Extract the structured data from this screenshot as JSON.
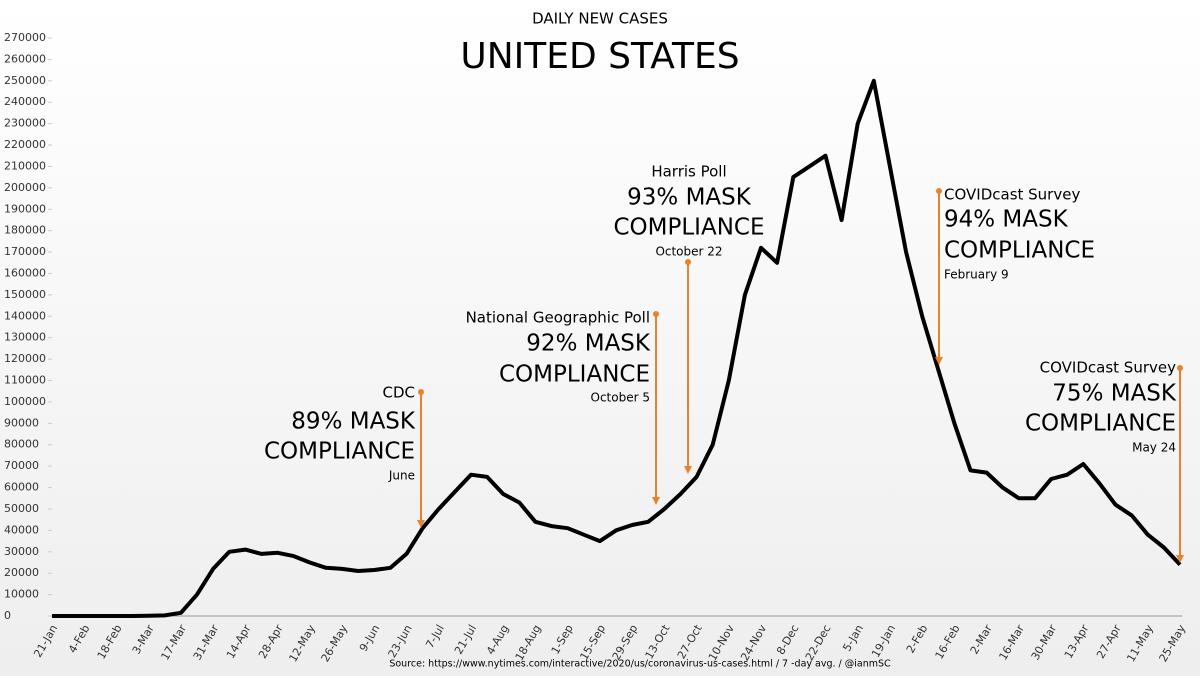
{
  "chart_data": {
    "type": "line",
    "title": "DAILY NEW CASES",
    "subtitle": "UNITED STATES",
    "source": "Source: https://www.nytimes.com/interactive/2020/us/coronavirus-us-cases.html / 7 -day avg. / @ianmSC",
    "categories": [
      "21-Jan",
      null,
      "4-Feb",
      null,
      "18-Feb",
      null,
      "3-Mar",
      null,
      "17-Mar",
      null,
      "31-Mar",
      null,
      "14-Apr",
      null,
      "28-Apr",
      null,
      "12-May",
      null,
      "26-May",
      null,
      "9-Jun",
      null,
      "23-Jun",
      null,
      "7-Jul",
      null,
      "21-Jul",
      null,
      "4-Aug",
      null,
      "18-Aug",
      null,
      "1-Sep",
      null,
      "15-Sep",
      null,
      "29-Sep",
      null,
      "13-Oct",
      null,
      "27-Oct",
      null,
      "10-Nov",
      null,
      "24-Nov",
      null,
      "8-Dec",
      null,
      "22-Dec",
      null,
      "5-Jan",
      null,
      "19-Jan",
      null,
      "2-Feb",
      null,
      "16-Feb",
      null,
      "2-Mar",
      null,
      "16-Mar",
      null,
      "30-Mar",
      null,
      "13-Apr",
      null,
      "27-Apr",
      null,
      "11-May",
      null,
      "25-May"
    ],
    "series": [
      {
        "name": "Daily new cases",
        "color": "#000000",
        "values": [
          0,
          0,
          0,
          0,
          0,
          0,
          100,
          300,
          1500,
          10000,
          22000,
          30000,
          31000,
          29000,
          29500,
          28000,
          25000,
          22500,
          22000,
          21000,
          21500,
          22500,
          29000,
          41000,
          50000,
          58000,
          66000,
          65000,
          57000,
          53000,
          44000,
          42000,
          41000,
          38000,
          35000,
          40000,
          42500,
          44000,
          50000,
          57000,
          65000,
          80000,
          110000,
          150000,
          172000,
          165000,
          205000,
          210000,
          215000,
          185000,
          230000,
          250000,
          210000,
          170000,
          140000,
          115000,
          90000,
          68000,
          67000,
          60000,
          55000,
          55000,
          64000,
          66000,
          71000,
          62000,
          52000,
          47000,
          38000,
          32000,
          24000
        ]
      }
    ],
    "ylim": [
      0,
      270000
    ],
    "yticks": [
      0,
      10000,
      20000,
      30000,
      40000,
      50000,
      60000,
      70000,
      80000,
      90000,
      100000,
      110000,
      120000,
      130000,
      140000,
      150000,
      160000,
      170000,
      180000,
      190000,
      200000,
      210000,
      220000,
      230000,
      240000,
      250000,
      260000,
      270000
    ],
    "grid": false,
    "annotation_color": "#e8822f",
    "annotations": [
      {
        "source": "CDC",
        "headline": "89% MASK",
        "compliance": "COMPLIANCE",
        "date": "June"
      },
      {
        "source": "National Geographic Poll",
        "headline": "92% MASK",
        "compliance": "COMPLIANCE",
        "date": "October 5"
      },
      {
        "source": "Harris Poll",
        "headline": "93% MASK",
        "compliance": "COMPLIANCE",
        "date": "October 22"
      },
      {
        "source": "COVIDcast Survey",
        "headline": "94% MASK",
        "compliance": "COMPLIANCE",
        "date": "February 9"
      },
      {
        "source": "COVIDcast Survey",
        "headline": "75% MASK",
        "compliance": "COMPLIANCE",
        "date": "May 24"
      }
    ]
  }
}
